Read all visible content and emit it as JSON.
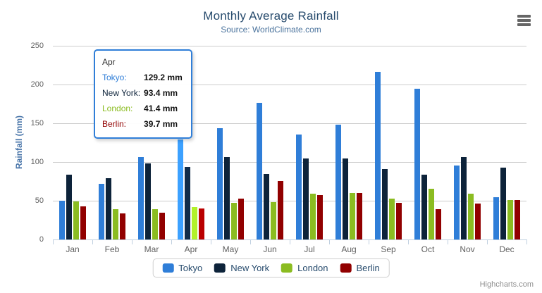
{
  "header": {
    "title": "Monthly Average Rainfall",
    "subtitle": "Source: WorldClimate.com"
  },
  "chart_data": {
    "type": "bar",
    "title": "Monthly Average Rainfall",
    "subtitle": "Source: WorldClimate.com",
    "categories": [
      "Jan",
      "Feb",
      "Mar",
      "Apr",
      "May",
      "Jun",
      "Jul",
      "Aug",
      "Sep",
      "Oct",
      "Nov",
      "Dec"
    ],
    "series": [
      {
        "name": "Tokyo",
        "color": "#2f7ed8",
        "values": [
          49.9,
          71.5,
          106.4,
          129.2,
          144.0,
          176.0,
          135.6,
          148.5,
          216.4,
          194.1,
          95.6,
          54.4
        ]
      },
      {
        "name": "New York",
        "color": "#0d233a",
        "values": [
          83.6,
          78.8,
          98.5,
          93.4,
          106.0,
          84.5,
          105.0,
          104.3,
          91.2,
          83.5,
          106.6,
          92.3
        ]
      },
      {
        "name": "London",
        "color": "#8bbc21",
        "values": [
          48.9,
          38.8,
          39.3,
          41.4,
          47.0,
          48.3,
          59.0,
          59.6,
          52.4,
          65.2,
          59.3,
          51.2
        ]
      },
      {
        "name": "Berlin",
        "color": "#910000",
        "values": [
          42.4,
          33.2,
          34.5,
          39.7,
          52.6,
          75.5,
          57.4,
          60.4,
          47.6,
          39.1,
          46.8,
          51.1
        ]
      }
    ],
    "xlabel": "",
    "ylabel": "Rainfall (mm)",
    "ylim": [
      0,
      250
    ],
    "yticks": [
      0,
      50,
      100,
      150,
      200,
      250
    ],
    "grid": true,
    "legend_position": "bottom",
    "value_suffix": " mm",
    "hovered_category": "Apr",
    "hovered_category_index": 3
  },
  "tooltip": {
    "header": "Apr",
    "rows": [
      {
        "label": "Tokyo:",
        "value": "129.2 mm",
        "color": "#2f7ed8"
      },
      {
        "label": "New York:",
        "value": "93.4 mm",
        "color": "#0d233a"
      },
      {
        "label": "London:",
        "value": "41.4 mm",
        "color": "#8bbc21"
      },
      {
        "label": "Berlin:",
        "value": "39.7 mm",
        "color": "#910000"
      }
    ]
  },
  "legend": {
    "items": [
      {
        "label": "Tokyo",
        "color": "#2f7ed8"
      },
      {
        "label": "New York",
        "color": "#0d233a"
      },
      {
        "label": "London",
        "color": "#8bbc21"
      },
      {
        "label": "Berlin",
        "color": "#910000"
      }
    ]
  },
  "credits": {
    "text": "Highcharts.com"
  },
  "colors": {
    "grid": "#cccccc",
    "axis": "#c0d0e0",
    "tick_label": "#606060",
    "title": "#274b6d",
    "subtitle": "#4d759e"
  }
}
